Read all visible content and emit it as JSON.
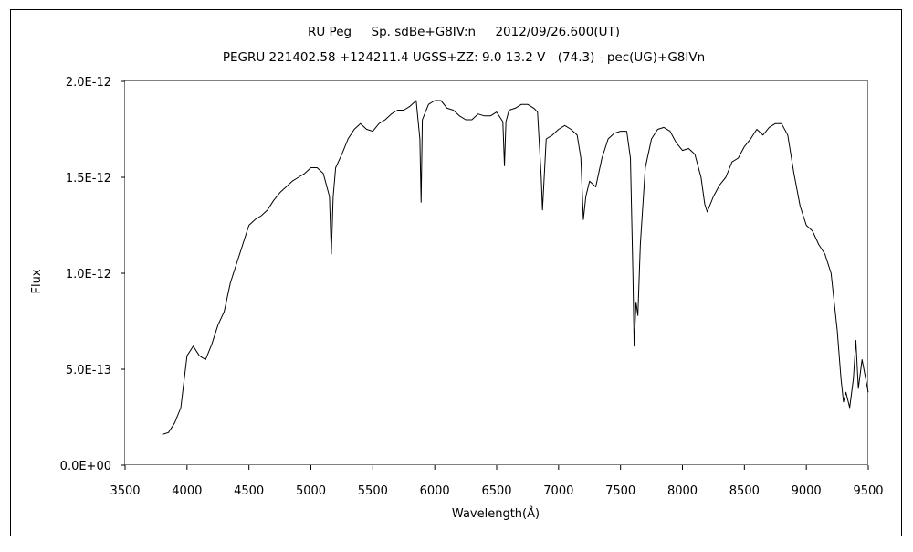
{
  "chart_data": {
    "type": "line",
    "title": "RU Peg     Sp. sdBe+G8IV:n     2012/09/26.600(UT)",
    "subtitle": "PEGRU 221402.58 +124211.4 UGSS+ZZ: 9.0 13.2 V - (74.3) - pec(UG)+G8IVn",
    "xlabel": "Wavelength(Å)",
    "ylabel": "Flux",
    "xlim": [
      3500,
      9500
    ],
    "ylim": [
      0,
      2e-12
    ],
    "x_ticks": [
      "3500",
      "4000",
      "4500",
      "5000",
      "5500",
      "6000",
      "6500",
      "7000",
      "7500",
      "8000",
      "8500",
      "9000",
      "9500"
    ],
    "y_ticks": [
      "0.0E+00",
      "5.0E-13",
      "1.0E-12",
      "1.5E-12",
      "2.0E-12"
    ],
    "grid": false,
    "legend": "none",
    "line_color": "#000000",
    "series": [
      {
        "x": [
          3800,
          3850,
          3900,
          3950,
          4000,
          4050,
          4100,
          4150,
          4200,
          4250,
          4300,
          4350,
          4400,
          4450,
          4500,
          4550,
          4600,
          4650,
          4700,
          4750,
          4800,
          4850,
          4900,
          4950,
          5000,
          5050,
          5100,
          5150,
          5165,
          5180,
          5200,
          5250,
          5300,
          5350,
          5400,
          5450,
          5500,
          5550,
          5600,
          5650,
          5700,
          5750,
          5800,
          5850,
          5880,
          5890,
          5900,
          5950,
          6000,
          6050,
          6100,
          6150,
          6200,
          6250,
          6300,
          6350,
          6400,
          6450,
          6500,
          6550,
          6563,
          6575,
          6600,
          6650,
          6700,
          6750,
          6800,
          6830,
          6860,
          6870,
          6900,
          6950,
          7000,
          7050,
          7100,
          7150,
          7180,
          7200,
          7220,
          7250,
          7300,
          7350,
          7400,
          7450,
          7500,
          7550,
          7580,
          7600,
          7610,
          7625,
          7640,
          7660,
          7700,
          7750,
          7800,
          7850,
          7900,
          7950,
          8000,
          8050,
          8100,
          8150,
          8180,
          8200,
          8250,
          8300,
          8350,
          8400,
          8450,
          8500,
          8550,
          8600,
          8650,
          8700,
          8750,
          8800,
          8850,
          8900,
          8950,
          9000,
          9050,
          9100,
          9150,
          9200,
          9250,
          9280,
          9300,
          9320,
          9350,
          9380,
          9400,
          9420,
          9450,
          9500
        ],
        "y": [
          1.6e-13,
          1.7e-13,
          2.2e-13,
          3e-13,
          5.7e-13,
          6.2e-13,
          5.7e-13,
          5.5e-13,
          6.3e-13,
          7.3e-13,
          8e-13,
          9.5e-13,
          1.05e-12,
          1.15e-12,
          1.25e-12,
          1.28e-12,
          1.3e-12,
          1.33e-12,
          1.38e-12,
          1.42e-12,
          1.45e-12,
          1.48e-12,
          1.5e-12,
          1.52e-12,
          1.55e-12,
          1.55e-12,
          1.52e-12,
          1.4e-12,
          1.1e-12,
          1.4e-12,
          1.55e-12,
          1.62e-12,
          1.7e-12,
          1.75e-12,
          1.78e-12,
          1.75e-12,
          1.74e-12,
          1.78e-12,
          1.8e-12,
          1.83e-12,
          1.85e-12,
          1.85e-12,
          1.87e-12,
          1.9e-12,
          1.7e-12,
          1.37e-12,
          1.8e-12,
          1.88e-12,
          1.9e-12,
          1.9e-12,
          1.86e-12,
          1.85e-12,
          1.82e-12,
          1.8e-12,
          1.8e-12,
          1.83e-12,
          1.82e-12,
          1.82e-12,
          1.84e-12,
          1.79e-12,
          1.56e-12,
          1.79e-12,
          1.85e-12,
          1.86e-12,
          1.88e-12,
          1.88e-12,
          1.86e-12,
          1.84e-12,
          1.5e-12,
          1.33e-12,
          1.7e-12,
          1.72e-12,
          1.75e-12,
          1.77e-12,
          1.75e-12,
          1.72e-12,
          1.6e-12,
          1.28e-12,
          1.4e-12,
          1.48e-12,
          1.45e-12,
          1.6e-12,
          1.7e-12,
          1.73e-12,
          1.74e-12,
          1.74e-12,
          1.6e-12,
          1e-12,
          6.2e-13,
          8.5e-13,
          7.8e-13,
          1.15e-12,
          1.55e-12,
          1.7e-12,
          1.75e-12,
          1.76e-12,
          1.74e-12,
          1.68e-12,
          1.64e-12,
          1.65e-12,
          1.62e-12,
          1.5e-12,
          1.36e-12,
          1.32e-12,
          1.4e-12,
          1.46e-12,
          1.5e-12,
          1.58e-12,
          1.6e-12,
          1.66e-12,
          1.7e-12,
          1.75e-12,
          1.72e-12,
          1.76e-12,
          1.78e-12,
          1.78e-12,
          1.72e-12,
          1.52e-12,
          1.35e-12,
          1.25e-12,
          1.22e-12,
          1.15e-12,
          1.1e-12,
          1e-12,
          7e-13,
          4.5e-13,
          3.3e-13,
          3.8e-13,
          3e-13,
          4.5e-13,
          6.5e-13,
          4e-13,
          5.5e-13,
          3.8e-13
        ]
      }
    ]
  }
}
